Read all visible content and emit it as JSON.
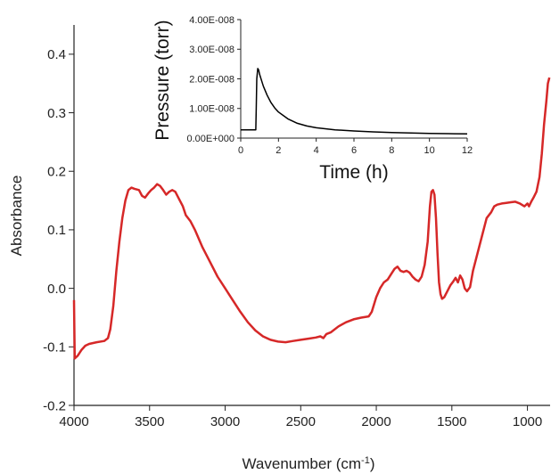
{
  "chart_data": [
    {
      "type": "line",
      "xlabel": "Wavenumber (cm",
      "xlabel_sup": "-1",
      "xlabel_end": ")",
      "ylabel": "Absorbance",
      "xlim": [
        4000,
        850
      ],
      "ylim": [
        -0.2,
        0.45
      ],
      "x_ticks": [
        4000,
        3500,
        3000,
        2500,
        2000,
        1500,
        1000
      ],
      "x_tick_labels": [
        "4000",
        "3500",
        "3000",
        "2500",
        "2000",
        "1500",
        "1000"
      ],
      "y_ticks": [
        -0.2,
        -0.1,
        0.0,
        0.1,
        0.2,
        0.3,
        0.4
      ],
      "y_tick_labels": [
        "-0.2",
        "-0.1",
        "0.0",
        "0.1",
        "0.2",
        "0.3",
        "0.4"
      ],
      "grid": false,
      "series": [
        {
          "color": "#d62828",
          "points": [
            [
              4000,
              -0.02
            ],
            [
              3995,
              -0.12
            ],
            [
              3975,
              -0.115
            ],
            [
              3950,
              -0.105
            ],
            [
              3925,
              -0.098
            ],
            [
              3900,
              -0.095
            ],
            [
              3850,
              -0.092
            ],
            [
              3800,
              -0.09
            ],
            [
              3775,
              -0.085
            ],
            [
              3760,
              -0.07
            ],
            [
              3740,
              -0.03
            ],
            [
              3720,
              0.03
            ],
            [
              3700,
              0.08
            ],
            [
              3680,
              0.12
            ],
            [
              3660,
              0.15
            ],
            [
              3640,
              0.168
            ],
            [
              3620,
              0.172
            ],
            [
              3600,
              0.17
            ],
            [
              3570,
              0.168
            ],
            [
              3550,
              0.158
            ],
            [
              3530,
              0.155
            ],
            [
              3510,
              0.162
            ],
            [
              3490,
              0.168
            ],
            [
              3470,
              0.172
            ],
            [
              3450,
              0.178
            ],
            [
              3430,
              0.175
            ],
            [
              3410,
              0.168
            ],
            [
              3390,
              0.16
            ],
            [
              3370,
              0.165
            ],
            [
              3350,
              0.168
            ],
            [
              3330,
              0.165
            ],
            [
              3300,
              0.15
            ],
            [
              3280,
              0.14
            ],
            [
              3260,
              0.125
            ],
            [
              3230,
              0.115
            ],
            [
              3200,
              0.1
            ],
            [
              3150,
              0.07
            ],
            [
              3100,
              0.045
            ],
            [
              3050,
              0.02
            ],
            [
              3000,
              0.0
            ],
            [
              2950,
              -0.02
            ],
            [
              2900,
              -0.04
            ],
            [
              2850,
              -0.058
            ],
            [
              2800,
              -0.072
            ],
            [
              2750,
              -0.082
            ],
            [
              2700,
              -0.088
            ],
            [
              2650,
              -0.091
            ],
            [
              2600,
              -0.092
            ],
            [
              2550,
              -0.09
            ],
            [
              2500,
              -0.088
            ],
            [
              2450,
              -0.086
            ],
            [
              2400,
              -0.084
            ],
            [
              2370,
              -0.082
            ],
            [
              2350,
              -0.085
            ],
            [
              2330,
              -0.078
            ],
            [
              2300,
              -0.075
            ],
            [
              2250,
              -0.065
            ],
            [
              2200,
              -0.058
            ],
            [
              2150,
              -0.053
            ],
            [
              2100,
              -0.05
            ],
            [
              2050,
              -0.048
            ],
            [
              2030,
              -0.04
            ],
            [
              2000,
              -0.015
            ],
            [
              1975,
              0.0
            ],
            [
              1950,
              0.01
            ],
            [
              1925,
              0.015
            ],
            [
              1900,
              0.025
            ],
            [
              1880,
              0.033
            ],
            [
              1860,
              0.037
            ],
            [
              1840,
              0.03
            ],
            [
              1820,
              0.028
            ],
            [
              1800,
              0.03
            ],
            [
              1780,
              0.027
            ],
            [
              1760,
              0.02
            ],
            [
              1740,
              0.015
            ],
            [
              1720,
              0.012
            ],
            [
              1700,
              0.02
            ],
            [
              1680,
              0.04
            ],
            [
              1660,
              0.08
            ],
            [
              1645,
              0.14
            ],
            [
              1635,
              0.165
            ],
            [
              1625,
              0.168
            ],
            [
              1615,
              0.16
            ],
            [
              1605,
              0.12
            ],
            [
              1595,
              0.06
            ],
            [
              1585,
              0.01
            ],
            [
              1575,
              -0.01
            ],
            [
              1565,
              -0.018
            ],
            [
              1550,
              -0.015
            ],
            [
              1530,
              -0.005
            ],
            [
              1510,
              0.005
            ],
            [
              1490,
              0.012
            ],
            [
              1475,
              0.018
            ],
            [
              1460,
              0.01
            ],
            [
              1445,
              0.022
            ],
            [
              1430,
              0.015
            ],
            [
              1415,
              0.0
            ],
            [
              1400,
              -0.005
            ],
            [
              1380,
              0.002
            ],
            [
              1360,
              0.03
            ],
            [
              1330,
              0.06
            ],
            [
              1300,
              0.09
            ],
            [
              1270,
              0.12
            ],
            [
              1240,
              0.13
            ],
            [
              1220,
              0.14
            ],
            [
              1200,
              0.143
            ],
            [
              1170,
              0.145
            ],
            [
              1140,
              0.146
            ],
            [
              1110,
              0.147
            ],
            [
              1080,
              0.148
            ],
            [
              1050,
              0.145
            ],
            [
              1020,
              0.14
            ],
            [
              1000,
              0.145
            ],
            [
              990,
              0.14
            ],
            [
              975,
              0.148
            ],
            [
              960,
              0.155
            ],
            [
              940,
              0.165
            ],
            [
              920,
              0.19
            ],
            [
              905,
              0.23
            ],
            [
              890,
              0.28
            ],
            [
              875,
              0.32
            ],
            [
              865,
              0.35
            ],
            [
              855,
              0.36
            ]
          ]
        }
      ]
    },
    {
      "type": "line",
      "xlabel": "Time (h)",
      "ylabel": "Pressure (torr)",
      "xlim": [
        0,
        12
      ],
      "ylim": [
        0,
        4e-08
      ],
      "x_ticks": [
        0,
        2,
        4,
        6,
        8,
        10,
        12
      ],
      "x_tick_labels": [
        "0",
        "2",
        "4",
        "6",
        "8",
        "10",
        "12"
      ],
      "y_ticks": [
        0,
        1e-08,
        2e-08,
        3e-08,
        4e-08
      ],
      "y_tick_labels": [
        "0.00E+000",
        "1.00E-008",
        "2.00E-008",
        "3.00E-008",
        "4.00E-008"
      ],
      "grid": false,
      "series": [
        {
          "color": "#000000",
          "points": [
            [
              0,
              2.8e-09
            ],
            [
              0.8,
              2.8e-09
            ],
            [
              0.82,
              1e-08
            ],
            [
              0.85,
              2e-08
            ],
            [
              0.9,
              2.35e-08
            ],
            [
              0.95,
              2.3e-08
            ],
            [
              1.0,
              2.15e-08
            ],
            [
              1.1,
              1.95e-08
            ],
            [
              1.2,
              1.75e-08
            ],
            [
              1.4,
              1.45e-08
            ],
            [
              1.6,
              1.2e-08
            ],
            [
              1.8,
              1.02e-08
            ],
            [
              2.0,
              8.8e-09
            ],
            [
              2.5,
              6.5e-09
            ],
            [
              3.0,
              5e-09
            ],
            [
              3.5,
              4.1e-09
            ],
            [
              4.0,
              3.5e-09
            ],
            [
              5.0,
              2.8e-09
            ],
            [
              6.0,
              2.4e-09
            ],
            [
              7.0,
              2.1e-09
            ],
            [
              8.0,
              1.9e-09
            ],
            [
              9.0,
              1.75e-09
            ],
            [
              10.0,
              1.6e-09
            ],
            [
              11.0,
              1.5e-09
            ],
            [
              12.0,
              1.4e-09
            ]
          ]
        }
      ]
    }
  ]
}
